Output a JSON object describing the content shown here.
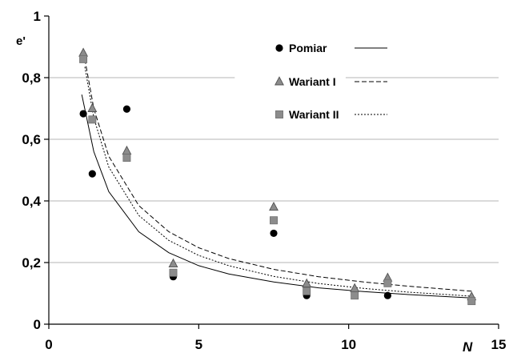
{
  "chart_data": {
    "type": "scatter",
    "title": "",
    "xlabel": "N",
    "ylabel": "e'",
    "xlim": [
      0,
      15
    ],
    "ylim": [
      0,
      1
    ],
    "x_ticks": [
      "0",
      "5",
      "10",
      "15"
    ],
    "y_ticks": [
      "0",
      "0,2",
      "0,4",
      "0,6",
      "0,8",
      "1"
    ],
    "grid": "horizontal",
    "legend_position": "top-right",
    "series": [
      {
        "name": "Pomiar",
        "marker": "circle",
        "color": "#000000",
        "line_style": "solid",
        "points": [
          {
            "x": 1.15,
            "y": 0.683
          },
          {
            "x": 1.45,
            "y": 0.488
          },
          {
            "x": 2.6,
            "y": 0.698
          },
          {
            "x": 4.15,
            "y": 0.154
          },
          {
            "x": 7.5,
            "y": 0.295
          },
          {
            "x": 8.6,
            "y": 0.093
          },
          {
            "x": 10.2,
            "y": 0.1
          },
          {
            "x": 11.3,
            "y": 0.093
          },
          {
            "x": 14.1,
            "y": 0.078
          }
        ],
        "curve": [
          {
            "x": 1.1,
            "y": 0.745
          },
          {
            "x": 1.5,
            "y": 0.56
          },
          {
            "x": 2.0,
            "y": 0.43
          },
          {
            "x": 3.0,
            "y": 0.3
          },
          {
            "x": 4.0,
            "y": 0.232
          },
          {
            "x": 5.0,
            "y": 0.19
          },
          {
            "x": 6.0,
            "y": 0.163
          },
          {
            "x": 7.5,
            "y": 0.137
          },
          {
            "x": 9.0,
            "y": 0.118
          },
          {
            "x": 10.5,
            "y": 0.106
          },
          {
            "x": 12.0,
            "y": 0.096
          },
          {
            "x": 14.1,
            "y": 0.085
          }
        ]
      },
      {
        "name": "Wariant I",
        "marker": "triangle",
        "color": "#8c8c8c",
        "line_style": "dashed",
        "points": [
          {
            "x": 1.15,
            "y": 0.88
          },
          {
            "x": 1.45,
            "y": 0.7
          },
          {
            "x": 2.6,
            "y": 0.562
          },
          {
            "x": 4.15,
            "y": 0.196
          },
          {
            "x": 7.5,
            "y": 0.38
          },
          {
            "x": 8.6,
            "y": 0.131
          },
          {
            "x": 10.2,
            "y": 0.116
          },
          {
            "x": 11.3,
            "y": 0.15
          },
          {
            "x": 14.1,
            "y": 0.089
          }
        ],
        "curve": [
          {
            "x": 1.2,
            "y": 0.86
          },
          {
            "x": 1.5,
            "y": 0.7
          },
          {
            "x": 2.0,
            "y": 0.545
          },
          {
            "x": 3.0,
            "y": 0.385
          },
          {
            "x": 4.0,
            "y": 0.3
          },
          {
            "x": 5.0,
            "y": 0.248
          },
          {
            "x": 6.0,
            "y": 0.213
          },
          {
            "x": 7.5,
            "y": 0.178
          },
          {
            "x": 9.0,
            "y": 0.154
          },
          {
            "x": 10.5,
            "y": 0.137
          },
          {
            "x": 12.0,
            "y": 0.123
          },
          {
            "x": 14.1,
            "y": 0.107
          }
        ]
      },
      {
        "name": "Wariant II",
        "marker": "square",
        "color": "#8c8c8c",
        "line_style": "dotted",
        "points": [
          {
            "x": 1.15,
            "y": 0.86
          },
          {
            "x": 1.45,
            "y": 0.664
          },
          {
            "x": 2.6,
            "y": 0.54
          },
          {
            "x": 4.15,
            "y": 0.167
          },
          {
            "x": 7.5,
            "y": 0.337
          },
          {
            "x": 8.6,
            "y": 0.107
          },
          {
            "x": 10.2,
            "y": 0.093
          },
          {
            "x": 11.3,
            "y": 0.133
          },
          {
            "x": 14.1,
            "y": 0.075
          }
        ],
        "curve": [
          {
            "x": 1.2,
            "y": 0.835
          },
          {
            "x": 1.5,
            "y": 0.67
          },
          {
            "x": 2.0,
            "y": 0.51
          },
          {
            "x": 3.0,
            "y": 0.353
          },
          {
            "x": 4.0,
            "y": 0.272
          },
          {
            "x": 5.0,
            "y": 0.223
          },
          {
            "x": 6.0,
            "y": 0.19
          },
          {
            "x": 7.5,
            "y": 0.155
          },
          {
            "x": 9.0,
            "y": 0.132
          },
          {
            "x": 10.5,
            "y": 0.116
          },
          {
            "x": 12.0,
            "y": 0.104
          },
          {
            "x": 14.1,
            "y": 0.091
          }
        ]
      }
    ]
  }
}
